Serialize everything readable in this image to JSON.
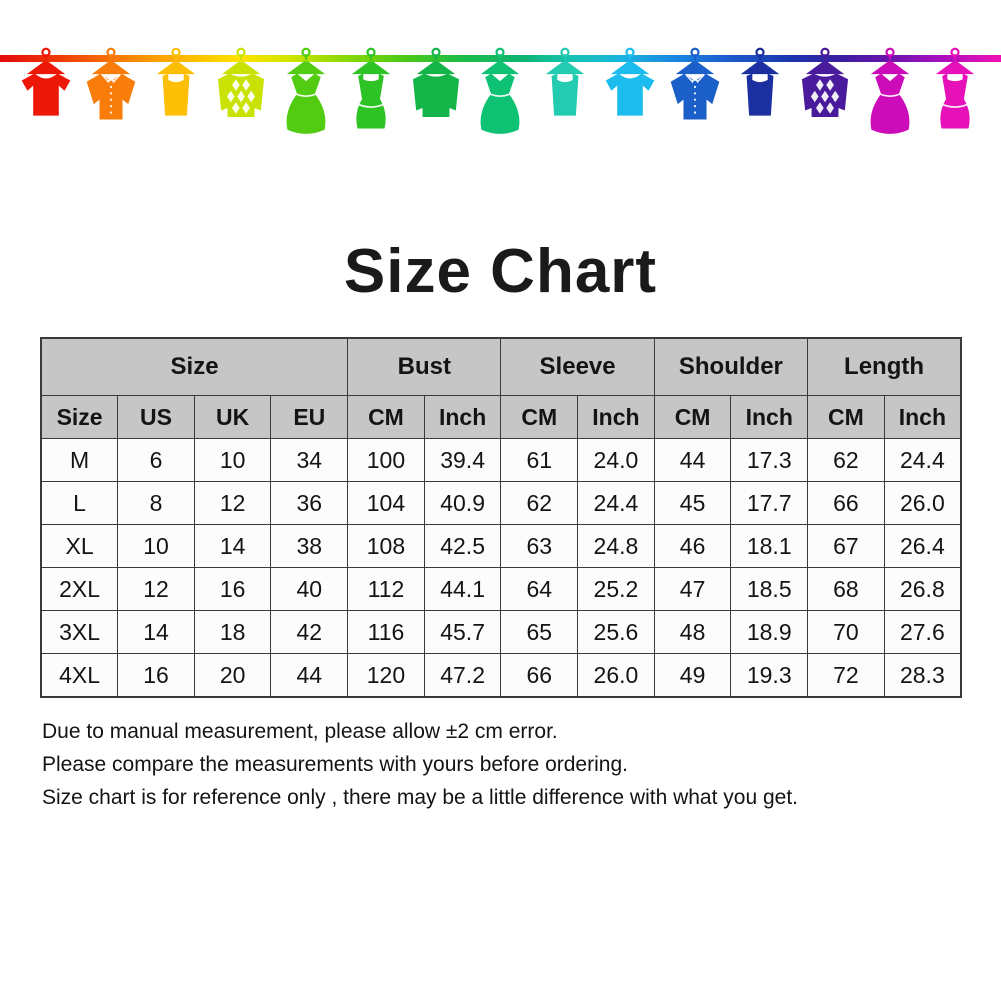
{
  "title": "Size Chart",
  "banner": {
    "description": "colorful clothes hanging on a rainbow clothesline",
    "line_gradient": [
      "#e30b0b",
      "#f87c02",
      "#ffe300",
      "#8fd906",
      "#1dbc45",
      "#0eb470",
      "#16c2b0",
      "#19b5e0",
      "#1d60d2",
      "#1b35ad",
      "#6b14ab",
      "#ef10b4"
    ],
    "items": [
      {
        "type": "tshirt",
        "color": "#ed1708"
      },
      {
        "type": "shirt",
        "color": "#f87d0a"
      },
      {
        "type": "tank",
        "color": "#fcbf05"
      },
      {
        "type": "sweater-argyle",
        "color": "#c9e203"
      },
      {
        "type": "dress",
        "color": "#52cc12"
      },
      {
        "type": "tank-dress",
        "color": "#2ec325"
      },
      {
        "type": "sweater",
        "color": "#15b448"
      },
      {
        "type": "dress",
        "color": "#0fc273"
      },
      {
        "type": "tank",
        "color": "#23cbb0"
      },
      {
        "type": "tshirt",
        "color": "#1cbdee"
      },
      {
        "type": "shirt",
        "color": "#1b5fc8"
      },
      {
        "type": "tank",
        "color": "#1b2fa0"
      },
      {
        "type": "sweater-argyle",
        "color": "#4a1a9c"
      },
      {
        "type": "dress",
        "color": "#cc0cb8"
      },
      {
        "type": "tank-dress",
        "color": "#e611b8"
      }
    ]
  },
  "table": {
    "group_headers": [
      {
        "label": "Size",
        "span": 4
      },
      {
        "label": "Bust",
        "span": 2
      },
      {
        "label": "Sleeve",
        "span": 2
      },
      {
        "label": "Shoulder",
        "span": 2
      },
      {
        "label": "Length",
        "span": 2
      }
    ],
    "sub_headers": [
      "Size",
      "US",
      "UK",
      "EU",
      "CM",
      "Inch",
      "CM",
      "Inch",
      "CM",
      "Inch",
      "CM",
      "Inch"
    ],
    "rows": [
      [
        "M",
        "6",
        "10",
        "34",
        "100",
        "39.4",
        "61",
        "24.0",
        "44",
        "17.3",
        "62",
        "24.4"
      ],
      [
        "L",
        "8",
        "12",
        "36",
        "104",
        "40.9",
        "62",
        "24.4",
        "45",
        "17.7",
        "66",
        "26.0"
      ],
      [
        "XL",
        "10",
        "14",
        "38",
        "108",
        "42.5",
        "63",
        "24.8",
        "46",
        "18.1",
        "67",
        "26.4"
      ],
      [
        "2XL",
        "12",
        "16",
        "40",
        "112",
        "44.1",
        "64",
        "25.2",
        "47",
        "18.5",
        "68",
        "26.8"
      ],
      [
        "3XL",
        "14",
        "18",
        "42",
        "116",
        "45.7",
        "65",
        "25.6",
        "48",
        "18.9",
        "70",
        "27.6"
      ],
      [
        "4XL",
        "16",
        "20",
        "44",
        "120",
        "47.2",
        "66",
        "26.0",
        "49",
        "19.3",
        "72",
        "28.3"
      ]
    ],
    "header_bg": "#c6c6c6",
    "border_color": "#3a3a3a"
  },
  "notes": [
    "Due to manual measurement, please allow ±2 cm error.",
    "Please compare the measurements with yours before ordering.",
    "Size chart is for reference only , there may be a little difference with what you get."
  ]
}
